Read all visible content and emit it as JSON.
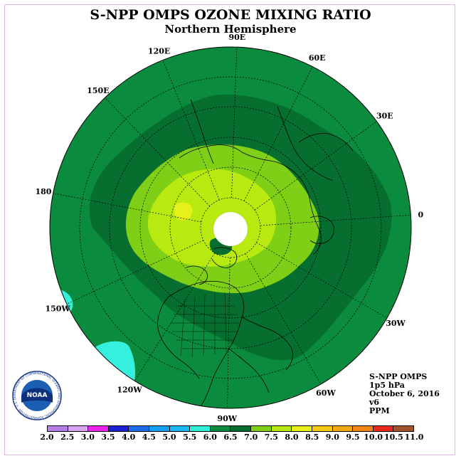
{
  "header": {
    "title": "S-NPP OMPS OZONE MIXING RATIO",
    "subtitle": "Northern Hemisphere"
  },
  "map": {
    "longitude_labels": [
      "120E",
      "90E",
      "60E",
      "30E",
      "0",
      "30W",
      "60W",
      "90W",
      "120W",
      "150W",
      "180",
      "150E"
    ],
    "colors": {
      "ppm_6_0_6_5": "#0b8b3e",
      "ppm_6_5_7_0": "#066e2e",
      "ppm_7_0_7_5": "#7ecf16",
      "ppm_7_5_8_0": "#b8ea12",
      "ppm_8_0_8_5": "#e8f01a",
      "ppm_5_5_6_0": "#36f0de",
      "no_data": "#ffffff"
    }
  },
  "info": {
    "instrument": "S-NPP OMPS",
    "pressure": "1p5 hPa",
    "date": "October 6, 2016",
    "version": "v6",
    "units": "PPM"
  },
  "colorbar": {
    "ticks": [
      "2.0",
      "2.5",
      "3.0",
      "3.5",
      "4.0",
      "4.5",
      "5.0",
      "5.5",
      "6.0",
      "6.5",
      "7.0",
      "7.5",
      "8.0",
      "8.5",
      "9.0",
      "9.5",
      "10.0",
      "10.5",
      "11.0"
    ],
    "colors": [
      "#b77de8",
      "#d8a6f0",
      "#ee22ee",
      "#1f1fd6",
      "#1e6ff0",
      "#12a0f0",
      "#1ab9f2",
      "#31f0d9",
      "#0b8b3e",
      "#066e2e",
      "#7ecf16",
      "#b8ea12",
      "#e8f01a",
      "#f7c812",
      "#f4a70f",
      "#f28512",
      "#ea2a1a",
      "#a4522a"
    ]
  },
  "logo": {
    "text": "NOAA",
    "ring_text": "NATIONAL OCEANIC AND ATMOSPHERIC ADMINISTRATION · U.S. DEPARTMENT OF COMMERCE"
  }
}
